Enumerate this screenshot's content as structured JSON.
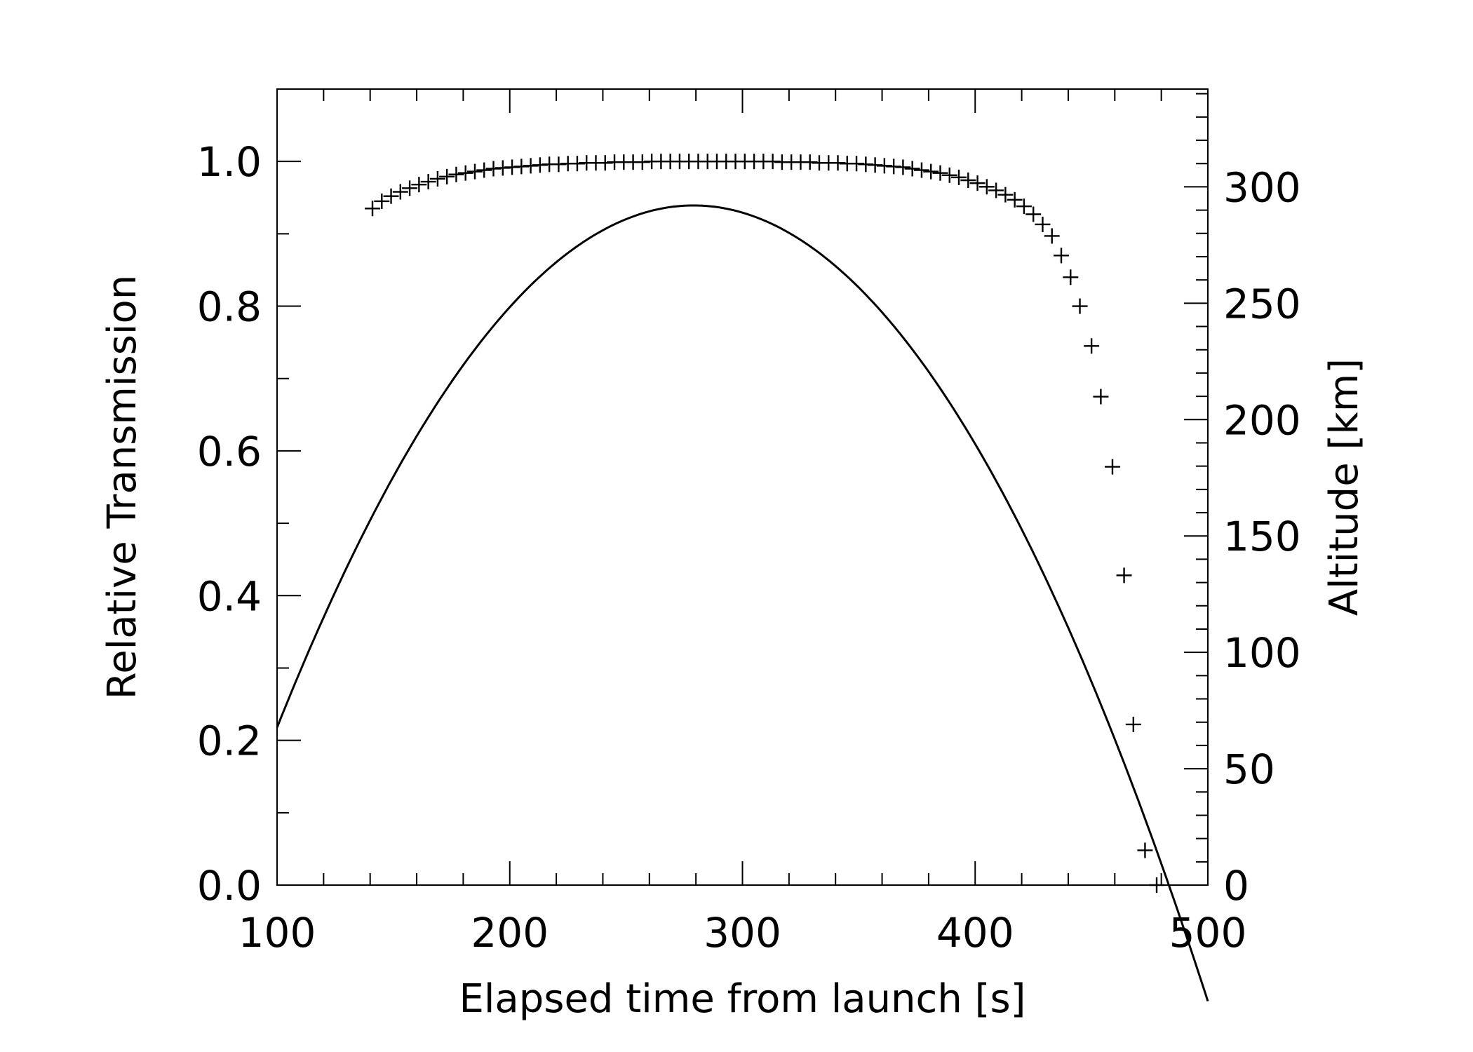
{
  "chart_data": {
    "type": "scatter",
    "xlabel": "Elapsed time from launch [s]",
    "ylabel": "Relative Transmission",
    "y2label": "Altitude [km]",
    "xlim": [
      100,
      500
    ],
    "ylim": [
      0.0,
      1.1
    ],
    "y2lim": [
      0,
      342
    ],
    "grid": false,
    "legend": "none",
    "x_ticks": [
      100,
      200,
      300,
      400,
      500
    ],
    "x_tick_labels": [
      "100",
      "200",
      "300",
      "400",
      "500"
    ],
    "y_ticks": [
      0.0,
      0.2,
      0.4,
      0.6,
      0.8,
      1.0
    ],
    "y_tick_labels": [
      "0.0",
      "0.2",
      "0.4",
      "0.6",
      "0.8",
      "1.0"
    ],
    "y2_ticks": [
      0,
      50,
      100,
      150,
      200,
      250,
      300
    ],
    "y2_tick_labels": [
      "0",
      "50",
      "100",
      "150",
      "200",
      "250",
      "300"
    ],
    "series": [
      {
        "marker": "+",
        "axis": "left",
        "x": [
          141,
          145,
          149,
          153,
          157,
          161,
          165,
          169,
          173,
          177,
          181,
          185,
          189,
          193,
          197,
          201,
          205,
          209,
          213,
          217,
          221,
          225,
          229,
          233,
          237,
          241,
          245,
          249,
          253,
          257,
          261,
          265,
          269,
          273,
          277,
          281,
          285,
          289,
          293,
          297,
          301,
          305,
          309,
          313,
          317,
          321,
          325,
          329,
          333,
          337,
          341,
          345,
          349,
          353,
          357,
          361,
          365,
          369,
          373,
          377,
          381,
          385,
          389,
          393,
          397,
          401,
          405,
          409,
          413,
          417,
          421,
          425,
          429,
          433,
          437,
          441,
          445,
          450,
          454,
          459,
          464,
          468,
          473,
          478
        ],
        "y": [
          0.935,
          0.945,
          0.952,
          0.958,
          0.963,
          0.968,
          0.972,
          0.976,
          0.979,
          0.982,
          0.984,
          0.986,
          0.988,
          0.99,
          0.991,
          0.992,
          0.993,
          0.994,
          0.995,
          0.996,
          0.996,
          0.997,
          0.997,
          0.998,
          0.998,
          0.998,
          0.999,
          0.999,
          0.999,
          0.999,
          1.0,
          1.0,
          1.0,
          1.0,
          1.0,
          1.0,
          1.0,
          1.0,
          1.0,
          1.0,
          1.0,
          1.0,
          1.0,
          1.0,
          0.999,
          0.999,
          0.999,
          0.999,
          0.998,
          0.998,
          0.998,
          0.997,
          0.997,
          0.996,
          0.995,
          0.994,
          0.993,
          0.992,
          0.99,
          0.988,
          0.986,
          0.984,
          0.981,
          0.978,
          0.974,
          0.97,
          0.965,
          0.96,
          0.954,
          0.947,
          0.938,
          0.927,
          0.913,
          0.897,
          0.87,
          0.84,
          0.8,
          0.745,
          0.675,
          0.578,
          0.428,
          0.222,
          0.048,
          0.0
        ]
      },
      {
        "marker": "line",
        "axis": "right",
        "model": "parabola",
        "peak_x": 279,
        "peak_y": 292,
        "curvature": 0.007,
        "x_range": [
          100,
          500
        ]
      }
    ]
  }
}
